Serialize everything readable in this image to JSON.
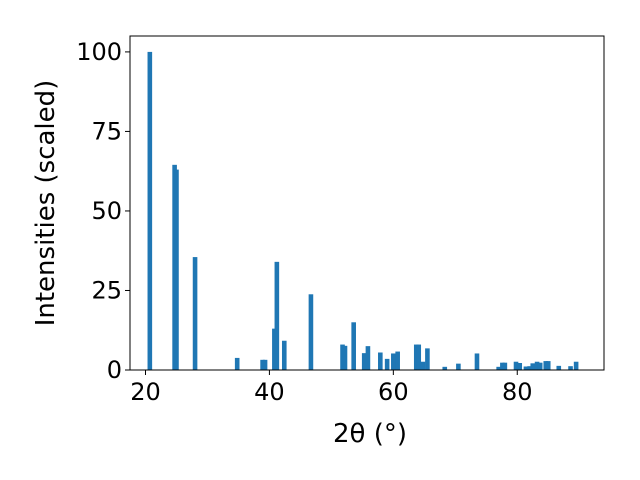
{
  "chart_data": {
    "type": "bar",
    "title": "",
    "xlabel": "2θ (°)",
    "ylabel": "Intensities (scaled)",
    "xlim": [
      17.5,
      94
    ],
    "ylim": [
      0,
      105
    ],
    "xticks": [
      20,
      40,
      60,
      80
    ],
    "yticks": [
      0,
      25,
      50,
      75,
      100
    ],
    "grid": false,
    "bar_color": "#1f77b4",
    "x": [
      20.7,
      24.7,
      25.0,
      28.0,
      34.8,
      38.9,
      39.3,
      40.8,
      41.2,
      42.4,
      46.7,
      51.8,
      52.2,
      53.6,
      55.3,
      55.9,
      57.9,
      59.0,
      60.0,
      60.7,
      63.7,
      64.1,
      64.8,
      65.5,
      68.3,
      70.5,
      73.5,
      77.0,
      77.6,
      78.0,
      79.8,
      80.4,
      81.4,
      82.0,
      82.5,
      83.2,
      83.7,
      84.6,
      85.0,
      86.7,
      88.6,
      89.5
    ],
    "values": [
      100,
      64.5,
      63,
      35.5,
      3.8,
      3.2,
      3.2,
      13,
      34,
      9.2,
      23.8,
      8,
      7.6,
      15,
      5.3,
      7.5,
      5.5,
      3.5,
      5.2,
      5.8,
      8,
      8,
      2.6,
      6.8,
      1,
      2,
      5.2,
      1,
      2.3,
      2.3,
      2.6,
      2.2,
      1.1,
      1.2,
      2.1,
      2.6,
      2.3,
      2.8,
      2.8,
      1.3,
      1.2,
      2.6
    ]
  }
}
